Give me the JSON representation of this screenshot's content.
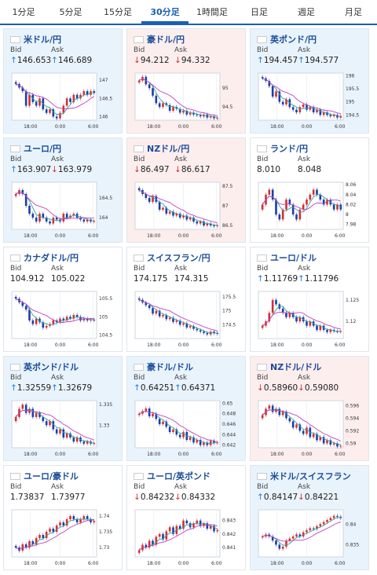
{
  "tabs": [
    {
      "label": "1分足",
      "active": false
    },
    {
      "label": "5分足",
      "active": false
    },
    {
      "label": "15分足",
      "active": false
    },
    {
      "label": "30分足",
      "active": true
    },
    {
      "label": "1時間足",
      "active": false
    },
    {
      "label": "日足",
      "active": false
    },
    {
      "label": "週足",
      "active": false
    },
    {
      "label": "月足",
      "active": false
    }
  ],
  "labels": {
    "bid": "Bid",
    "ask": "Ask"
  },
  "time_labels": [
    "18:00",
    "0:00",
    "6:00"
  ],
  "colors": {
    "up": "#1f7ad6",
    "down": "#d23030",
    "candle_up": "#d23030",
    "candle_down": "#1a3ea8",
    "ma1": "#3aa0a0",
    "ma2": "#c040c0",
    "title": "#1a4d99"
  },
  "cards": [
    {
      "title": "米ドル/円",
      "bg": "blue",
      "bid": "146.653",
      "ask": "146.689",
      "bid_dir": "up",
      "ask_dir": "up",
      "yticks": [
        "147",
        "146.5",
        "146"
      ],
      "ymin": 145.9,
      "ymax": 147.2,
      "closes": [
        146.9,
        146.8,
        146.7,
        146.3,
        146.6,
        146.4,
        146.3,
        146.5,
        146.2,
        146.1,
        146.2,
        146.0,
        145.95,
        146.1,
        146.3,
        146.5,
        146.4,
        146.6,
        146.5,
        146.6,
        146.7,
        146.6,
        146.7,
        146.65
      ]
    },
    {
      "title": "豪ドル/円",
      "bg": "pink",
      "bid": "94.212",
      "ask": "94.332",
      "bid_dir": "down",
      "ask_dir": "down",
      "yticks": [
        "95",
        "94.5"
      ],
      "ymin": 94.15,
      "ymax": 95.4,
      "closes": [
        95.2,
        95.3,
        95.1,
        95.0,
        94.8,
        94.6,
        94.5,
        94.6,
        94.55,
        94.4,
        94.5,
        94.45,
        94.35,
        94.4,
        94.3,
        94.35,
        94.3,
        94.28,
        94.25,
        94.3,
        94.22,
        94.25,
        94.2,
        94.21
      ]
    },
    {
      "title": "英ポンド/円",
      "bg": "blue",
      "bid": "194.457",
      "ask": "194.577",
      "bid_dir": "up",
      "ask_dir": "up",
      "yticks": [
        "196",
        "195.5",
        "195",
        "194.5"
      ],
      "ymin": 194.3,
      "ymax": 196.1,
      "closes": [
        195.9,
        195.8,
        195.6,
        195.2,
        195.4,
        195.0,
        194.9,
        195.1,
        194.8,
        194.7,
        194.6,
        194.8,
        194.9,
        194.7,
        194.8,
        194.6,
        194.7,
        194.5,
        194.6,
        194.5,
        194.45,
        194.5,
        194.4,
        194.46
      ]
    },
    {
      "title": "ユーロ/円",
      "bg": "blue",
      "bid": "163.907",
      "ask": "163.979",
      "bid_dir": "up",
      "ask_dir": "down",
      "yticks": [
        "164.5",
        "164"
      ],
      "ymin": 163.7,
      "ymax": 164.9,
      "closes": [
        164.6,
        164.7,
        164.6,
        164.3,
        164.1,
        164.0,
        163.9,
        164.1,
        164.0,
        163.9,
        163.85,
        164.0,
        163.95,
        163.9,
        164.1,
        164.0,
        164.05,
        164.1,
        164.0,
        163.95,
        163.9,
        163.95,
        163.9,
        163.91
      ]
    },
    {
      "title": "NZドル/円",
      "bg": "pink",
      "bid": "86.497",
      "ask": "86.617",
      "bid_dir": "down",
      "ask_dir": "down",
      "yticks": [
        "87.5",
        "87",
        "86.5"
      ],
      "ymin": 86.4,
      "ymax": 87.6,
      "closes": [
        87.4,
        87.3,
        87.2,
        87.1,
        87.25,
        87.1,
        86.9,
        86.95,
        86.8,
        86.85,
        86.75,
        86.8,
        86.7,
        86.75,
        86.65,
        86.7,
        86.6,
        86.55,
        86.6,
        86.5,
        86.55,
        86.5,
        86.48,
        86.5
      ]
    },
    {
      "title": "ランド/円",
      "bg": "plain",
      "bid": "8.010",
      "ask": "8.048",
      "bid_dir": "none",
      "ask_dir": "none",
      "yticks": [
        "8.06",
        "8.04",
        "8.02",
        "8",
        "7.98"
      ],
      "ymin": 7.97,
      "ymax": 8.065,
      "closes": [
        8.02,
        8.04,
        8.05,
        8.03,
        8.0,
        7.99,
        8.01,
        8.03,
        8.02,
        8.0,
        7.99,
        8.01,
        8.02,
        8.03,
        8.04,
        8.05,
        8.04,
        8.03,
        8.02,
        8.03,
        8.02,
        8.01,
        8.02,
        8.01
      ]
    },
    {
      "title": "カナダドル/円",
      "bg": "plain",
      "bid": "104.912",
      "ask": "105.022",
      "bid_dir": "none",
      "ask_dir": "none",
      "yticks": [
        "105.5",
        "105",
        "104.5"
      ],
      "ymin": 104.4,
      "ymax": 105.7,
      "closes": [
        105.5,
        105.4,
        105.3,
        105.2,
        104.9,
        104.8,
        104.95,
        104.85,
        104.7,
        104.75,
        104.8,
        104.9,
        104.85,
        104.95,
        104.9,
        105.0,
        104.95,
        105.05,
        105.0,
        104.9,
        104.95,
        104.9,
        104.92,
        104.91
      ]
    },
    {
      "title": "スイスフラン/円",
      "bg": "plain",
      "bid": "174.175",
      "ask": "174.315",
      "bid_dir": "none",
      "ask_dir": "none",
      "yticks": [
        "175.5",
        "175",
        "174.5"
      ],
      "ymin": 174.0,
      "ymax": 175.7,
      "closes": [
        175.4,
        175.3,
        175.2,
        175.1,
        174.9,
        175.0,
        174.8,
        174.85,
        174.7,
        174.75,
        174.6,
        174.65,
        174.5,
        174.55,
        174.4,
        174.45,
        174.35,
        174.3,
        174.25,
        174.2,
        174.15,
        174.25,
        174.2,
        174.18
      ]
    },
    {
      "title": "ユーロ/ドル",
      "bg": "plain",
      "bid": "1.11769",
      "ask": "1.11796",
      "bid_dir": "up",
      "ask_dir": "up",
      "yticks": [
        "1.125",
        "1.12"
      ],
      "ymin": 1.116,
      "ymax": 1.127,
      "closes": [
        1.119,
        1.12,
        1.122,
        1.125,
        1.124,
        1.123,
        1.122,
        1.121,
        1.122,
        1.121,
        1.12,
        1.121,
        1.12,
        1.119,
        1.12,
        1.119,
        1.118,
        1.119,
        1.118,
        1.1175,
        1.118,
        1.1177,
        1.1176,
        1.1177
      ]
    },
    {
      "title": "英ポンド/ドル",
      "bg": "blue",
      "bid": "1.32559",
      "ask": "1.32679",
      "bid_dir": "up",
      "ask_dir": "up",
      "yticks": [
        "1.335",
        "1.33"
      ],
      "ymin": 1.3245,
      "ymax": 1.336,
      "closes": [
        1.332,
        1.334,
        1.335,
        1.333,
        1.334,
        1.332,
        1.333,
        1.332,
        1.331,
        1.33,
        1.331,
        1.329,
        1.328,
        1.329,
        1.327,
        1.328,
        1.327,
        1.326,
        1.327,
        1.326,
        1.3255,
        1.326,
        1.3255,
        1.3256
      ]
    },
    {
      "title": "豪ドル/ドル",
      "bg": "blue",
      "bid": "0.64251",
      "ask": "0.64371",
      "bid_dir": "up",
      "ask_dir": "up",
      "yticks": [
        "0.65",
        "0.648",
        "0.646",
        "0.644",
        "0.642"
      ],
      "ymin": 0.6415,
      "ymax": 0.6505,
      "closes": [
        0.648,
        0.6485,
        0.649,
        0.6475,
        0.648,
        0.647,
        0.646,
        0.6465,
        0.6455,
        0.6445,
        0.645,
        0.644,
        0.6435,
        0.6445,
        0.643,
        0.6435,
        0.6425,
        0.643,
        0.642,
        0.6425,
        0.642,
        0.6428,
        0.6424,
        0.6425
      ]
    },
    {
      "title": "NZドル/ドル",
      "bg": "pink",
      "bid": "0.58960",
      "ask": "0.59080",
      "bid_dir": "down",
      "ask_dir": "down",
      "yticks": [
        "0.596",
        "0.594",
        "0.592",
        "0.59"
      ],
      "ymin": 0.5893,
      "ymax": 0.5968,
      "closes": [
        0.5945,
        0.5955,
        0.596,
        0.595,
        0.5955,
        0.5945,
        0.595,
        0.594,
        0.5935,
        0.5925,
        0.593,
        0.592,
        0.5915,
        0.5925,
        0.591,
        0.5915,
        0.5905,
        0.591,
        0.59,
        0.5905,
        0.5898,
        0.59,
        0.5895,
        0.5896
      ]
    },
    {
      "title": "ユーロ/豪ドル",
      "bg": "plain",
      "bid": "1.73837",
      "ask": "1.73977",
      "bid_dir": "none",
      "ask_dir": "none",
      "yticks": [
        "1.74",
        "1.735",
        "1.73"
      ],
      "ymin": 1.727,
      "ymax": 1.742,
      "closes": [
        1.73,
        1.729,
        1.731,
        1.73,
        1.732,
        1.731,
        1.733,
        1.734,
        1.733,
        1.735,
        1.736,
        1.735,
        1.737,
        1.738,
        1.737,
        1.739,
        1.74,
        1.739,
        1.738,
        1.739,
        1.74,
        1.739,
        1.738,
        1.7384
      ]
    },
    {
      "title": "ユーロ/英ポンド",
      "bg": "plain",
      "bid": "0.84232",
      "ask": "0.84332",
      "bid_dir": "down",
      "ask_dir": "down",
      "yticks": [
        "0.843",
        "0.842",
        "0.841"
      ],
      "ymin": 0.8403,
      "ymax": 0.8438,
      "closes": [
        0.8408,
        0.8412,
        0.841,
        0.8415,
        0.8412,
        0.8418,
        0.842,
        0.8416,
        0.8422,
        0.8425,
        0.842,
        0.8426,
        0.8424,
        0.843,
        0.8428,
        0.8425,
        0.8428,
        0.843,
        0.8426,
        0.8428,
        0.8424,
        0.8426,
        0.8422,
        0.8423
      ]
    },
    {
      "title": "米ドル/スイスフラン",
      "bg": "blue",
      "bid": "0.84147",
      "ask": "0.84221",
      "bid_dir": "up",
      "ask_dir": "down",
      "yticks": [
        "0.84",
        "0.835"
      ],
      "ymin": 0.832,
      "ymax": 0.8435,
      "closes": [
        0.837,
        0.8375,
        0.837,
        0.836,
        0.835,
        0.834,
        0.8345,
        0.836,
        0.8365,
        0.837,
        0.8375,
        0.837,
        0.838,
        0.8385,
        0.839,
        0.8388,
        0.8395,
        0.84,
        0.8405,
        0.841,
        0.8415,
        0.842,
        0.8418,
        0.8415
      ]
    }
  ]
}
